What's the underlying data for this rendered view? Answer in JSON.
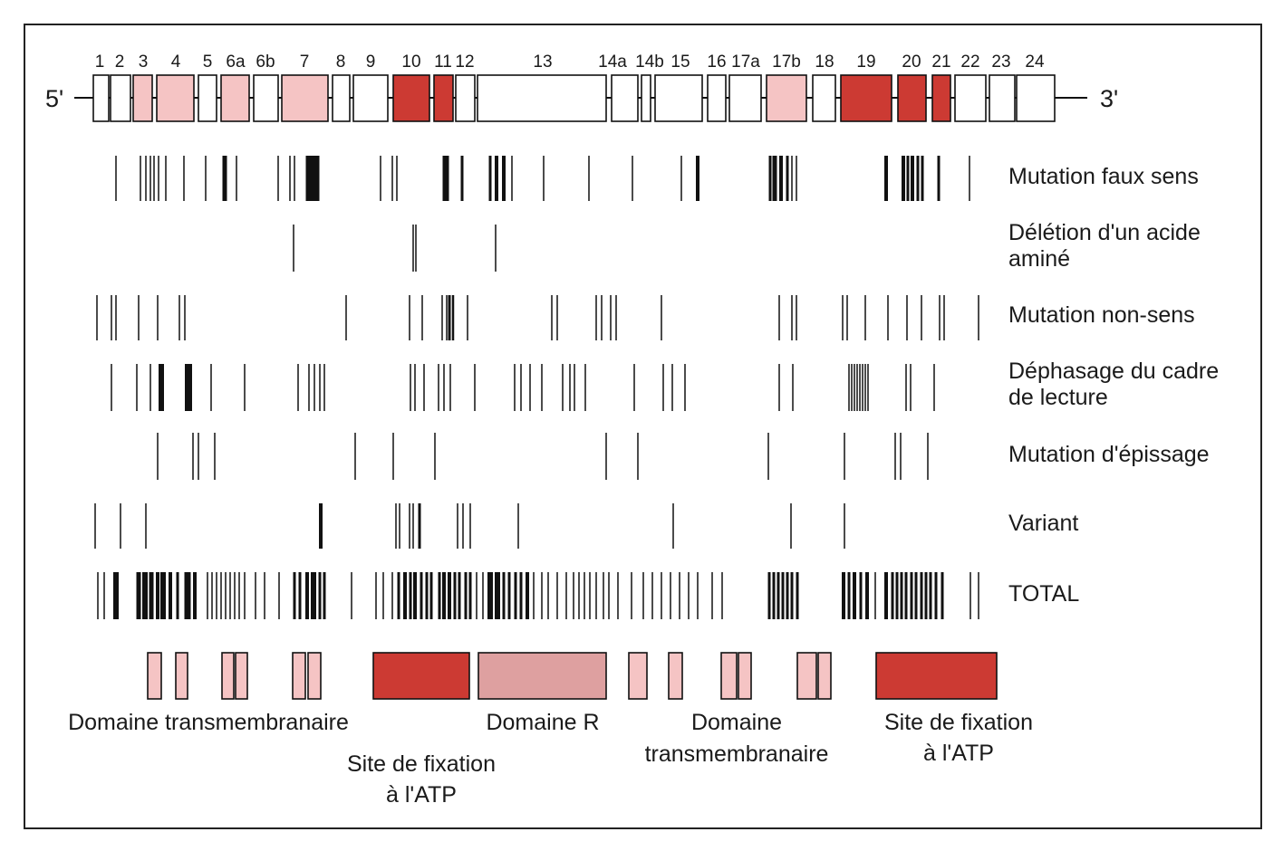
{
  "gene": {
    "five_prime": "5'",
    "three_prime": "3'",
    "exons": [
      {
        "label": "1",
        "fill": "white"
      },
      {
        "label": "2",
        "fill": "white"
      },
      {
        "label": "3",
        "fill": "pink"
      },
      {
        "label": "4",
        "fill": "pink"
      },
      {
        "label": "5",
        "fill": "white"
      },
      {
        "label": "6a",
        "fill": "pink"
      },
      {
        "label": "6b",
        "fill": "white"
      },
      {
        "label": "7",
        "fill": "pink"
      },
      {
        "label": "8",
        "fill": "white"
      },
      {
        "label": "9",
        "fill": "white"
      },
      {
        "label": "10",
        "fill": "red"
      },
      {
        "label": "11",
        "fill": "red"
      },
      {
        "label": "12",
        "fill": "white"
      },
      {
        "label": "13",
        "fill": "white"
      },
      {
        "label": "14a",
        "fill": "white"
      },
      {
        "label": "14b",
        "fill": "white"
      },
      {
        "label": "15",
        "fill": "white"
      },
      {
        "label": "16",
        "fill": "white"
      },
      {
        "label": "17a",
        "fill": "white"
      },
      {
        "label": "17b",
        "fill": "pink"
      },
      {
        "label": "18",
        "fill": "white"
      },
      {
        "label": "19",
        "fill": "red"
      },
      {
        "label": "20",
        "fill": "red"
      },
      {
        "label": "21",
        "fill": "red"
      },
      {
        "label": "22",
        "fill": "white"
      },
      {
        "label": "23",
        "fill": "white"
      },
      {
        "label": "24",
        "fill": "white"
      }
    ]
  },
  "tracks": [
    {
      "label": "Mutation faux sens"
    },
    {
      "label": "Délétion d'un acide aminé"
    },
    {
      "label": "Mutation non-sens"
    },
    {
      "label": "Déphasage du cadre de lecture"
    },
    {
      "label": "Mutation d'épissage"
    },
    {
      "label": "Variant"
    },
    {
      "label": "TOTAL"
    }
  ],
  "domains": {
    "labels": [
      "Domaine transmembranaire",
      "Site de fixation à l'ATP",
      "Domaine R",
      "Domaine transmembranaire",
      "Site de fixation à l'ATP"
    ]
  },
  "colors": {
    "pink": "#f5c4c4",
    "red": "#cc3a33",
    "r_domain": "#dea0a0",
    "line": "#111111"
  }
}
